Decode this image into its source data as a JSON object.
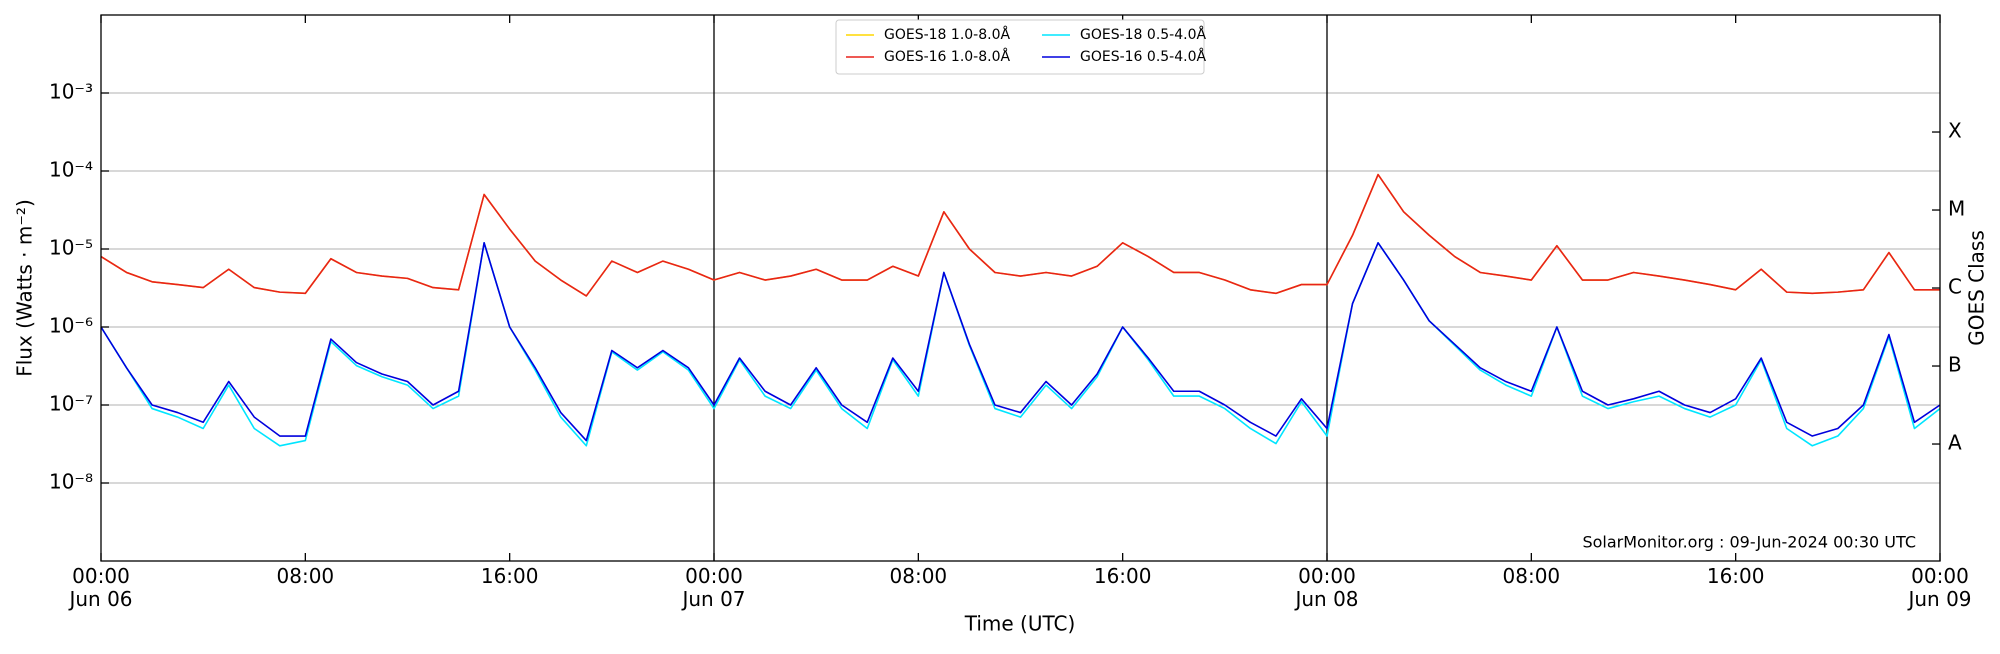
{
  "chart_data": {
    "type": "line",
    "ylabel": "Flux (Watts · m⁻²)",
    "xlabel": "Time (UTC)",
    "y2label": "GOES Class",
    "annotation": "SolarMonitor.org : 09-Jun-2024 00:30 UTC",
    "log_y": true,
    "grid": "y",
    "legend": "upper center",
    "ylim": [
      1e-09,
      0.01
    ],
    "yticks": [
      {
        "value": 1e-08,
        "label": "10⁻⁸"
      },
      {
        "value": 1e-07,
        "label": "10⁻⁷"
      },
      {
        "value": 1e-06,
        "label": "10⁻⁶"
      },
      {
        "value": 1e-05,
        "label": "10⁻⁵"
      },
      {
        "value": 0.0001,
        "label": "10⁻⁴"
      },
      {
        "value": 0.001,
        "label": "10⁻³"
      }
    ],
    "y2lim": [
      1e-09,
      0.01
    ],
    "y2ticks": [
      {
        "value": 3.16e-08,
        "label": "A"
      },
      {
        "value": 3.16e-07,
        "label": "B"
      },
      {
        "value": 3.16e-06,
        "label": "C"
      },
      {
        "value": 3.16e-05,
        "label": "M"
      },
      {
        "value": 0.000316,
        "label": "X"
      }
    ],
    "xlim": [
      "Jun 06 00:00",
      "Jun 09 00:00"
    ],
    "xticks": [
      {
        "value": "Jun 06 00:00",
        "label": "00:00\nJun 06"
      },
      {
        "value": "Jun 06 08:00",
        "label": "08:00"
      },
      {
        "value": "Jun 06 16:00",
        "label": "16:00"
      },
      {
        "value": "Jun 07 00:00",
        "label": "00:00\nJun 07"
      },
      {
        "value": "Jun 07 08:00",
        "label": "08:00"
      },
      {
        "value": "Jun 07 16:00",
        "label": "16:00"
      },
      {
        "value": "Jun 08 00:00",
        "label": "00:00\nJun 08"
      },
      {
        "value": "Jun 08 08:00",
        "label": "08:00"
      },
      {
        "value": "Jun 08 16:00",
        "label": "16:00"
      },
      {
        "value": "Jun 09 00:00",
        "label": "00:00\nJun 09"
      }
    ],
    "vlines": [
      "Jun 07 00:00",
      "Jun 08 00:00"
    ],
    "x": [
      "Jun 06 00:00",
      "Jun 06 01:00",
      "Jun 06 02:00",
      "Jun 06 03:00",
      "Jun 06 04:00",
      "Jun 06 05:00",
      "Jun 06 06:00",
      "Jun 06 07:00",
      "Jun 06 08:00",
      "Jun 06 09:00",
      "Jun 06 10:00",
      "Jun 06 11:00",
      "Jun 06 12:00",
      "Jun 06 13:00",
      "Jun 06 14:00",
      "Jun 06 15:00",
      "Jun 06 16:00",
      "Jun 06 17:00",
      "Jun 06 18:00",
      "Jun 06 19:00",
      "Jun 06 20:00",
      "Jun 06 21:00",
      "Jun 06 22:00",
      "Jun 06 23:00",
      "Jun 07 00:00",
      "Jun 07 01:00",
      "Jun 07 02:00",
      "Jun 07 03:00",
      "Jun 07 04:00",
      "Jun 07 05:00",
      "Jun 07 06:00",
      "Jun 07 07:00",
      "Jun 07 08:00",
      "Jun 07 09:00",
      "Jun 07 10:00",
      "Jun 07 11:00",
      "Jun 07 12:00",
      "Jun 07 13:00",
      "Jun 07 14:00",
      "Jun 07 15:00",
      "Jun 07 16:00",
      "Jun 07 17:00",
      "Jun 07 18:00",
      "Jun 07 19:00",
      "Jun 07 20:00",
      "Jun 07 21:00",
      "Jun 07 22:00",
      "Jun 07 23:00",
      "Jun 08 00:00",
      "Jun 08 01:00",
      "Jun 08 02:00",
      "Jun 08 03:00",
      "Jun 08 04:00",
      "Jun 08 05:00",
      "Jun 08 06:00",
      "Jun 08 07:00",
      "Jun 08 08:00",
      "Jun 08 09:00",
      "Jun 08 10:00",
      "Jun 08 11:00",
      "Jun 08 12:00",
      "Jun 08 13:00",
      "Jun 08 14:00",
      "Jun 08 15:00",
      "Jun 08 16:00",
      "Jun 08 17:00",
      "Jun 08 18:00",
      "Jun 08 19:00",
      "Jun 08 20:00",
      "Jun 08 21:00",
      "Jun 08 22:00",
      "Jun 08 23:00",
      "Jun 09 00:00"
    ],
    "series": [
      {
        "name": "GOES-18 1.0-8.0Å",
        "color": "#ffd700",
        "values": [
          8e-06,
          5e-06,
          3.8e-06,
          3.5e-06,
          3.2e-06,
          5.5e-06,
          3.2e-06,
          2.8e-06,
          2.7e-06,
          7.5e-06,
          5e-06,
          4.5e-06,
          4.2e-06,
          3.2e-06,
          3e-06,
          5e-05,
          1.8e-05,
          7e-06,
          4e-06,
          2.5e-06,
          7e-06,
          5e-06,
          7e-06,
          5.5e-06,
          4e-06,
          5e-06,
          4e-06,
          4.5e-06,
          5.5e-06,
          4e-06,
          4e-06,
          6e-06,
          4.5e-06,
          3e-05,
          1e-05,
          5e-06,
          4.5e-06,
          5e-06,
          4.5e-06,
          6e-06,
          1.2e-05,
          8e-06,
          5e-06,
          5e-06,
          4e-06,
          3e-06,
          2.7e-06,
          3.5e-06,
          3.5e-06,
          1.5e-05,
          9e-05,
          3e-05,
          1.5e-05,
          8e-06,
          5e-06,
          4.5e-06,
          4e-06,
          1.1e-05,
          4e-06,
          4e-06,
          5e-06,
          4.5e-06,
          4e-06,
          3.5e-06,
          3e-06,
          5.5e-06,
          2.8e-06,
          2.7e-06,
          2.8e-06,
          3e-06,
          9e-06,
          3e-06,
          3e-06
        ]
      },
      {
        "name": "GOES-16 1.0-8.0Å",
        "color": "#e8221b",
        "values": [
          8e-06,
          5e-06,
          3.8e-06,
          3.5e-06,
          3.2e-06,
          5.5e-06,
          3.2e-06,
          2.8e-06,
          2.7e-06,
          7.5e-06,
          5e-06,
          4.5e-06,
          4.2e-06,
          3.2e-06,
          3e-06,
          5e-05,
          1.8e-05,
          7e-06,
          4e-06,
          2.5e-06,
          7e-06,
          5e-06,
          7e-06,
          5.5e-06,
          4e-06,
          5e-06,
          4e-06,
          4.5e-06,
          5.5e-06,
          4e-06,
          4e-06,
          6e-06,
          4.5e-06,
          3e-05,
          1e-05,
          5e-06,
          4.5e-06,
          5e-06,
          4.5e-06,
          6e-06,
          1.2e-05,
          8e-06,
          5e-06,
          5e-06,
          4e-06,
          3e-06,
          2.7e-06,
          3.5e-06,
          3.5e-06,
          1.5e-05,
          9e-05,
          3e-05,
          1.5e-05,
          8e-06,
          5e-06,
          4.5e-06,
          4e-06,
          1.1e-05,
          4e-06,
          4e-06,
          5e-06,
          4.5e-06,
          4e-06,
          3.5e-06,
          3e-06,
          5.5e-06,
          2.8e-06,
          2.7e-06,
          2.8e-06,
          3e-06,
          9e-06,
          3e-06,
          3e-06
        ]
      },
      {
        "name": "GOES-18 0.5-4.0Å",
        "color": "#00e5ff",
        "values": [
          1e-06,
          3e-07,
          9e-08,
          7e-08,
          5e-08,
          1.8e-07,
          5e-08,
          3e-08,
          3.5e-08,
          6.5e-07,
          3.2e-07,
          2.3e-07,
          1.8e-07,
          9e-08,
          1.3e-07,
          1.2e-05,
          1e-06,
          2.8e-07,
          7e-08,
          3e-08,
          4.8e-07,
          2.8e-07,
          4.8e-07,
          2.8e-07,
          9e-08,
          3.8e-07,
          1.3e-07,
          9e-08,
          2.8e-07,
          9e-08,
          5e-08,
          3.8e-07,
          1.3e-07,
          5e-06,
          5.8e-07,
          9e-08,
          7e-08,
          1.8e-07,
          9e-08,
          2.3e-07,
          1e-06,
          3.8e-07,
          1.3e-07,
          1.3e-07,
          9e-08,
          5e-08,
          3.2e-08,
          1.1e-07,
          4e-08,
          2e-06,
          1.2e-05,
          4e-06,
          1.2e-06,
          5.8e-07,
          2.8e-07,
          1.8e-07,
          1.3e-07,
          1e-06,
          1.3e-07,
          9e-08,
          1.1e-07,
          1.3e-07,
          9e-08,
          7e-08,
          1e-07,
          3.8e-07,
          5e-08,
          3e-08,
          4e-08,
          9e-08,
          7.5e-07,
          5e-08,
          9e-08
        ]
      },
      {
        "name": "GOES-16 0.5-4.0Å",
        "color": "#0000dd",
        "values": [
          1e-06,
          3e-07,
          1e-07,
          8e-08,
          6e-08,
          2e-07,
          7e-08,
          4e-08,
          4e-08,
          7e-07,
          3.5e-07,
          2.5e-07,
          2e-07,
          1e-07,
          1.5e-07,
          1.2e-05,
          1e-06,
          3e-07,
          8e-08,
          3.5e-08,
          5e-07,
          3e-07,
          5e-07,
          3e-07,
          1e-07,
          4e-07,
          1.5e-07,
          1e-07,
          3e-07,
          1e-07,
          6e-08,
          4e-07,
          1.5e-07,
          5e-06,
          6e-07,
          1e-07,
          8e-08,
          2e-07,
          1e-07,
          2.5e-07,
          1e-06,
          4e-07,
          1.5e-07,
          1.5e-07,
          1e-07,
          6e-08,
          4e-08,
          1.2e-07,
          5e-08,
          2e-06,
          1.2e-05,
          4e-06,
          1.2e-06,
          6e-07,
          3e-07,
          2e-07,
          1.5e-07,
          1e-06,
          1.5e-07,
          1e-07,
          1.2e-07,
          1.5e-07,
          1e-07,
          8e-08,
          1.2e-07,
          4e-07,
          6e-08,
          4e-08,
          5e-08,
          1e-07,
          8e-07,
          6e-08,
          1e-07
        ]
      }
    ]
  }
}
